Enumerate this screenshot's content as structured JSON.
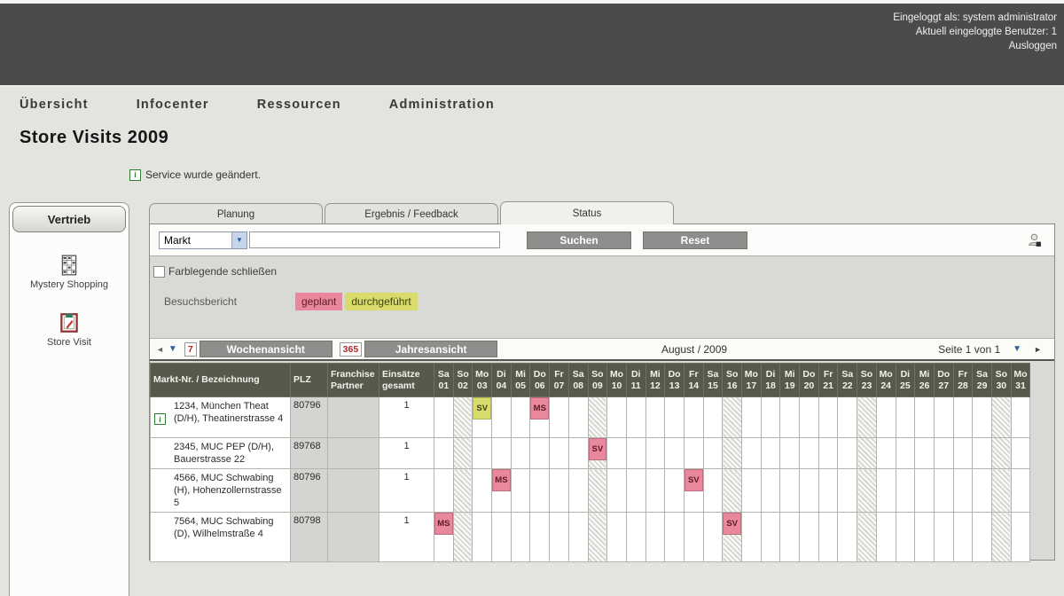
{
  "header": {
    "logged_in_as": "Eingeloggt als: system administrator",
    "active_users": "Aktuell eingeloggte Benutzer: 1",
    "logout": "Ausloggen"
  },
  "nav": {
    "items": [
      "Übersicht",
      "Infocenter",
      "Ressourcen",
      "Administration"
    ]
  },
  "page": {
    "title": "Store Visits 2009",
    "notice": "Service wurde geändert."
  },
  "sidebar": {
    "title": "Vertrieb",
    "items": [
      {
        "label": "Mystery Shopping",
        "icon": "spreadsheet-icon"
      },
      {
        "label": "Store Visit",
        "icon": "clipboard-icon"
      }
    ]
  },
  "tabs": [
    {
      "label": "Planung",
      "active": false
    },
    {
      "label": "Ergebnis / Feedback",
      "active": false
    },
    {
      "label": "Status",
      "active": true
    }
  ],
  "search": {
    "field_selector": "Markt",
    "query_value": "",
    "suchen_label": "Suchen",
    "reset_label": "Reset"
  },
  "legend": {
    "close_label": "Farblegende schließen",
    "row_label": "Besuchsbericht",
    "items": [
      {
        "label": "geplant",
        "color": "#e9879c",
        "text_color": "#5d1b29"
      },
      {
        "label": "durchgeführt",
        "color": "#d9dc6d",
        "text_color": "#3f4210"
      }
    ]
  },
  "toolbar": {
    "week_badge": "7",
    "week_label": "Wochenansicht",
    "year_badge": "365",
    "year_label": "Jahresansicht",
    "period": "August / 2009",
    "page_info": "Seite 1 von 1"
  },
  "table": {
    "columns": [
      "Markt-Nr. / Bezeichnung",
      "PLZ",
      "Franchise\nPartner",
      "Einsätze\ngesamt"
    ],
    "days": [
      {
        "d": "Sa",
        "n": "01"
      },
      {
        "d": "So",
        "n": "02"
      },
      {
        "d": "Mo",
        "n": "03"
      },
      {
        "d": "Di",
        "n": "04"
      },
      {
        "d": "Mi",
        "n": "05"
      },
      {
        "d": "Do",
        "n": "06"
      },
      {
        "d": "Fr",
        "n": "07"
      },
      {
        "d": "Sa",
        "n": "08"
      },
      {
        "d": "So",
        "n": "09"
      },
      {
        "d": "Mo",
        "n": "10"
      },
      {
        "d": "Di",
        "n": "11"
      },
      {
        "d": "Mi",
        "n": "12"
      },
      {
        "d": "Do",
        "n": "13"
      },
      {
        "d": "Fr",
        "n": "14"
      },
      {
        "d": "Sa",
        "n": "15"
      },
      {
        "d": "So",
        "n": "16"
      },
      {
        "d": "Mo",
        "n": "17"
      },
      {
        "d": "Di",
        "n": "18"
      },
      {
        "d": "Mi",
        "n": "19"
      },
      {
        "d": "Do",
        "n": "20"
      },
      {
        "d": "Fr",
        "n": "21"
      },
      {
        "d": "Sa",
        "n": "22"
      },
      {
        "d": "So",
        "n": "23"
      },
      {
        "d": "Mo",
        "n": "24"
      },
      {
        "d": "Di",
        "n": "25"
      },
      {
        "d": "Mi",
        "n": "26"
      },
      {
        "d": "Do",
        "n": "27"
      },
      {
        "d": "Fr",
        "n": "28"
      },
      {
        "d": "Sa",
        "n": "29"
      },
      {
        "d": "So",
        "n": "30"
      },
      {
        "d": "Mo",
        "n": "31"
      }
    ],
    "rows": [
      {
        "info": true,
        "name": "1234, München Theat (D/H), Theatinerstrasse 4",
        "plz": "80796",
        "franchise": "",
        "total": "1",
        "visits": [
          {
            "day": 3,
            "code": "SV",
            "status": "durchgeführt"
          },
          {
            "day": 6,
            "code": "MS",
            "status": "geplant"
          }
        ]
      },
      {
        "info": false,
        "name": "2345, MUC PEP (D/H), Bauerstrasse 22",
        "plz": "89768",
        "franchise": "",
        "total": "1",
        "visits": [
          {
            "day": 9,
            "code": "SV",
            "status": "geplant"
          }
        ]
      },
      {
        "info": false,
        "name": "4566, MUC Schwabing (H), Hohenzollernstrasse 5",
        "plz": "80796",
        "franchise": "",
        "total": "1",
        "visits": [
          {
            "day": 4,
            "code": "MS",
            "status": "geplant"
          },
          {
            "day": 14,
            "code": "SV",
            "status": "geplant"
          }
        ]
      },
      {
        "info": false,
        "name": "7564, MUC Schwabing (D), Wilhelmstraße 4",
        "plz": "80798",
        "franchise": "",
        "total": "1",
        "visits": [
          {
            "day": 1,
            "code": "MS",
            "status": "geplant"
          },
          {
            "day": 16,
            "code": "SV",
            "status": "geplant"
          }
        ]
      }
    ]
  }
}
